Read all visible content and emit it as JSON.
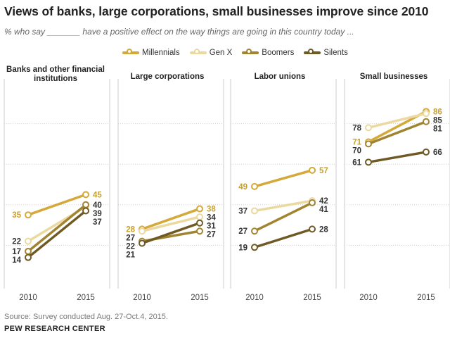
{
  "header": {
    "title": "Views of banks, large corporations, small businesses improve since 2010",
    "subtitle": "% who say _______ have a positive effect on the way things are going in this country today ..."
  },
  "footer": {
    "source": "Source: Survey conducted Aug. 27-Oct.4, 2015.",
    "org": "PEW RESEARCH CENTER"
  },
  "colors": {
    "Millennials": "#d4a93a",
    "Gen X": "#ecd9a0",
    "Boomers": "#a08432",
    "Silents": "#6f5a24",
    "grid": "#cfcfcf",
    "panel_border": "#cccccc"
  },
  "chart_data": {
    "type": "line",
    "x": [
      "2010",
      "2015"
    ],
    "ylim": [
      0,
      100
    ],
    "legend": [
      "Millennials",
      "Gen X",
      "Boomers",
      "Silents"
    ],
    "legend_position": "top-center",
    "grid": true,
    "panels": [
      {
        "title": "Banks and other financial institutions",
        "series": [
          {
            "name": "Millennials",
            "values": [
              35,
              45
            ]
          },
          {
            "name": "Gen X",
            "values": [
              22,
              39
            ]
          },
          {
            "name": "Boomers",
            "values": [
              17,
              40
            ]
          },
          {
            "name": "Silents",
            "values": [
              14,
              37
            ]
          }
        ]
      },
      {
        "title": "Large corporations",
        "series": [
          {
            "name": "Millennials",
            "values": [
              28,
              38
            ]
          },
          {
            "name": "Gen X",
            "values": [
              27,
              34
            ]
          },
          {
            "name": "Boomers",
            "values": [
              22,
              27
            ]
          },
          {
            "name": "Silents",
            "values": [
              21,
              31
            ]
          }
        ]
      },
      {
        "title": "Labor unions",
        "series": [
          {
            "name": "Millennials",
            "values": [
              49,
              57
            ]
          },
          {
            "name": "Gen X",
            "values": [
              37,
              42
            ]
          },
          {
            "name": "Boomers",
            "values": [
              27,
              41
            ]
          },
          {
            "name": "Silents",
            "values": [
              19,
              28
            ]
          }
        ]
      },
      {
        "title": "Small businesses",
        "series": [
          {
            "name": "Millennials",
            "values": [
              71,
              86
            ]
          },
          {
            "name": "Gen X",
            "values": [
              78,
              85
            ]
          },
          {
            "name": "Boomers",
            "values": [
              70,
              81
            ]
          },
          {
            "name": "Silents",
            "values": [
              61,
              66
            ]
          }
        ]
      }
    ]
  }
}
